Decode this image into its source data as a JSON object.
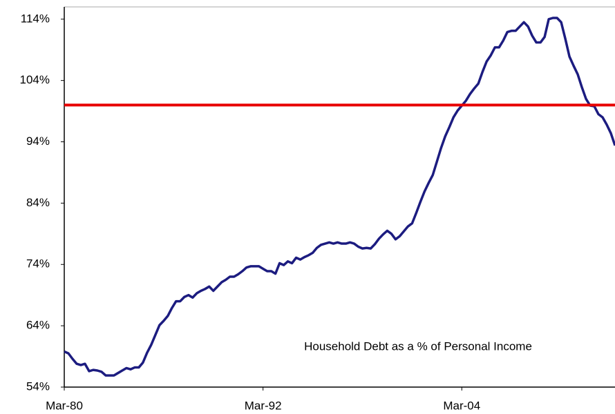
{
  "chart_data": {
    "type": "line",
    "annotation": "Household Debt as a % of Personal Income",
    "categories": [
      "Mar-80",
      null,
      null,
      null,
      null,
      null,
      null,
      null,
      null,
      null,
      null,
      null,
      null,
      null,
      null,
      null,
      null,
      null,
      null,
      null,
      null,
      null,
      null,
      null,
      null,
      null,
      null,
      null,
      null,
      null,
      null,
      null,
      null,
      null,
      null,
      null,
      null,
      null,
      null,
      null,
      null,
      null,
      null,
      null,
      null,
      null,
      null,
      null,
      "Mar-92",
      null,
      null,
      null,
      null,
      null,
      null,
      null,
      null,
      null,
      null,
      null,
      null,
      null,
      null,
      null,
      null,
      null,
      null,
      null,
      null,
      null,
      null,
      null,
      null,
      null,
      null,
      null,
      null,
      null,
      null,
      null,
      null,
      null,
      null,
      null,
      null,
      null,
      null,
      null,
      null,
      null,
      null,
      null,
      null,
      null,
      null,
      null,
      "Mar-04",
      null,
      null,
      null,
      null,
      null,
      null,
      null,
      null,
      null,
      null,
      null,
      null,
      null,
      null,
      null,
      null,
      null,
      null,
      null,
      null,
      null,
      null,
      null,
      null,
      null,
      null,
      null,
      null,
      null,
      null,
      null,
      null,
      null,
      null,
      null,
      null,
      null
    ],
    "values": [
      59.8,
      59.5,
      58.6,
      57.8,
      57.6,
      57.8,
      56.6,
      56.8,
      56.7,
      56.5,
      55.9,
      55.9,
      55.9,
      56.3,
      56.7,
      57.1,
      56.9,
      57.2,
      57.2,
      58.0,
      59.6,
      60.9,
      62.5,
      64.1,
      64.8,
      65.6,
      66.9,
      68.0,
      68.0,
      68.7,
      69.0,
      68.6,
      69.3,
      69.7,
      70.0,
      70.4,
      69.7,
      70.4,
      71.1,
      71.5,
      72.0,
      72.0,
      72.4,
      72.9,
      73.5,
      73.7,
      73.7,
      73.7,
      73.3,
      72.9,
      72.9,
      72.5,
      74.2,
      73.9,
      74.5,
      74.2,
      75.1,
      74.8,
      75.2,
      75.5,
      75.9,
      76.7,
      77.2,
      77.4,
      77.6,
      77.4,
      77.6,
      77.4,
      77.4,
      77.6,
      77.4,
      76.9,
      76.6,
      76.7,
      76.6,
      77.3,
      78.2,
      78.9,
      79.5,
      79.0,
      78.1,
      78.6,
      79.4,
      80.2,
      80.7,
      82.4,
      84.2,
      85.9,
      87.3,
      88.6,
      90.8,
      93.0,
      94.9,
      96.4,
      98.0,
      99.1,
      99.9,
      100.7,
      101.8,
      102.7,
      103.5,
      105.4,
      107.1,
      108.1,
      109.4,
      109.4,
      110.5,
      111.9,
      112.1,
      112.1,
      112.8,
      113.5,
      112.8,
      111.3,
      110.2,
      110.2,
      111.1,
      114.0,
      114.2,
      114.2,
      113.5,
      110.8,
      107.9,
      106.4,
      105.0,
      102.9,
      101.0,
      99.9,
      99.8,
      98.5,
      98.0,
      96.8,
      95.4,
      93.4
    ],
    "color": "#1c1c80",
    "hline": {
      "value": 100,
      "color": "#e80000"
    },
    "ylim": [
      54,
      116
    ],
    "yticks": [
      {
        "value": 54,
        "label": "54%"
      },
      {
        "value": 64,
        "label": "64%"
      },
      {
        "value": 74,
        "label": "74%"
      },
      {
        "value": 84,
        "label": "84%"
      },
      {
        "value": 94,
        "label": "94%"
      },
      {
        "value": 104,
        "label": "104%"
      },
      {
        "value": 114,
        "label": "114%"
      }
    ],
    "grid": false
  }
}
